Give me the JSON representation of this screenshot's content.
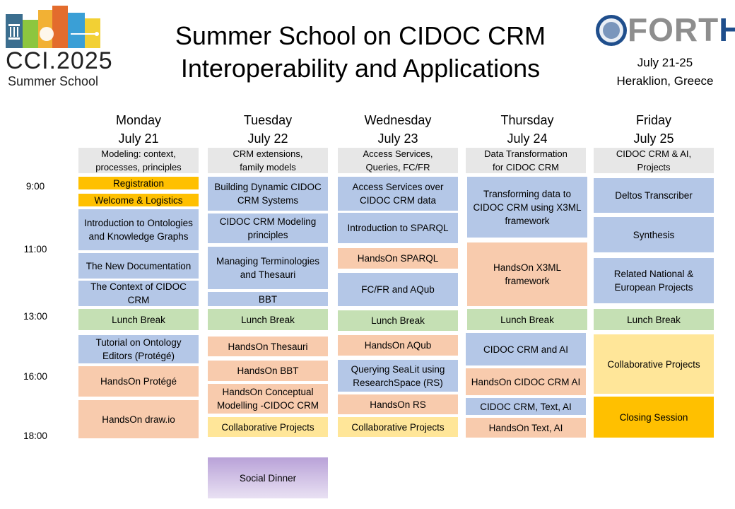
{
  "header": {
    "title_line1": "Summer School on CIDOC CRM",
    "title_line2": "Interoperability and Applications",
    "dates_line1": "July 21-25",
    "dates_line2": "Heraklion, Greece",
    "logo_left_line1": "CCI.2025",
    "logo_left_line2": "Summer School",
    "logo_right_text": "FORTH"
  },
  "times": [
    "9:00",
    "11:00",
    "13:00",
    "16:00",
    "18:00"
  ],
  "days": [
    {
      "name": "Monday",
      "date": "July 21",
      "theme_line1": "Modeling: context,",
      "theme_line2": "processes, principles"
    },
    {
      "name": "Tuesday",
      "date": "July 22",
      "theme_line1": "CRM extensions,",
      "theme_line2": "family models"
    },
    {
      "name": "Wednesday",
      "date": "July 23",
      "theme_line1": "Access Services,",
      "theme_line2": "Queries, FC/FR"
    },
    {
      "name": "Thursday",
      "date": "July 24",
      "theme_line1": "Data Transformation",
      "theme_line2": "for CIDOC CRM"
    },
    {
      "name": "Friday",
      "date": "July 25",
      "theme_line1": "CIDOC CRM & AI,",
      "theme_line2": "Projects"
    }
  ],
  "sessions": {
    "monday": [
      "Registration",
      "Welcome & Logistics",
      "Introduction to Ontologies and Knowledge Graphs",
      "The New Documentation",
      "The Context of CIDOC CRM",
      "Lunch Break",
      "Tutorial on Ontology Editors (Protégé)",
      "HandsOn Protégé",
      "HandsOn draw.io"
    ],
    "tuesday": [
      "Building Dynamic CIDOC CRM Systems",
      "CIDOC CRM Modeling principles",
      "Managing Terminologies and Thesauri",
      "BBT",
      "Lunch Break",
      "HandsOn Thesauri",
      "HandsOn BBT",
      "HandsOn Conceptual Modelling -CIDOC CRM",
      "Collaborative Projects",
      "Social Dinner"
    ],
    "wednesday": [
      "Access Services over CIDOC CRM data",
      "Introduction to SPARQL",
      "HandsOn SPARQL",
      "FC/FR and AQub",
      "Lunch Break",
      "HandsOn AQub",
      "Querying SeaLit using ResearchSpace (RS)",
      "HandsOn RS",
      "Collaborative Projects"
    ],
    "thursday": [
      "Transforming data to CIDOC CRM using X3ML framework",
      "HandsOn X3ML framework",
      "Lunch Break",
      "CIDOC CRM and AI",
      "HandsOn CIDOC CRM AI",
      "CIDOC CRM, Text, AI",
      "HandsOn Text, AI"
    ],
    "friday": [
      "Deltos Transcriber",
      "Synthesis",
      "Related National & European Projects",
      "Lunch Break",
      "Collaborative Projects",
      "Closing Session"
    ]
  }
}
